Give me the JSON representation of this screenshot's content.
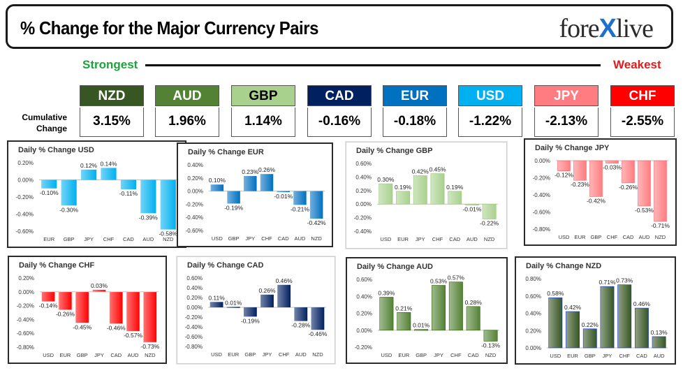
{
  "header": {
    "title": "% Change for the Major Currency Pairs",
    "logo_left": "fore",
    "logo_x": "X",
    "logo_right": "live"
  },
  "ranking": {
    "strongest_label": "Strongest",
    "weakest_label": "Weakest",
    "cumulative_label_line1": "Cumulative",
    "cumulative_label_line2": "Change",
    "tiles": [
      {
        "currency": "NZD",
        "value": "3.15%",
        "bg": "#375623",
        "fg": "#ffffff"
      },
      {
        "currency": "AUD",
        "value": "1.96%",
        "bg": "#548235",
        "fg": "#ffffff"
      },
      {
        "currency": "GBP",
        "value": "1.14%",
        "bg": "#a9d18e",
        "fg": "#000000"
      },
      {
        "currency": "CAD",
        "value": "-0.16%",
        "bg": "#002060",
        "fg": "#ffffff"
      },
      {
        "currency": "EUR",
        "value": "-0.18%",
        "bg": "#0070c0",
        "fg": "#ffffff"
      },
      {
        "currency": "USD",
        "value": "-1.22%",
        "bg": "#00b0f0",
        "fg": "#ffffff"
      },
      {
        "currency": "JPY",
        "value": "-2.13%",
        "bg": "#ff7c80",
        "fg": "#ffffff"
      },
      {
        "currency": "CHF",
        "value": "-2.55%",
        "bg": "#ff0000",
        "fg": "#ffffff"
      }
    ]
  },
  "chart_data": [
    {
      "type": "bar",
      "title": "Daily % Change USD",
      "categories": [
        "EUR",
        "GBP",
        "JPY",
        "CHF",
        "CAD",
        "AUD",
        "NZD"
      ],
      "values": [
        -0.1,
        -0.3,
        0.12,
        0.14,
        -0.11,
        -0.39,
        -0.58
      ],
      "labels": [
        "-0.10%",
        "-0.30%",
        "0.12%",
        "0.14%",
        "-0.11%",
        "-0.39%",
        "-0.58%"
      ],
      "ylim": [
        -0.6,
        0.2
      ],
      "ticks": [
        "0.20%",
        "0.00%",
        "-0.20%",
        "-0.40%",
        "-0.60%"
      ],
      "tick_values": [
        0.2,
        0,
        -0.2,
        -0.4,
        -0.6
      ],
      "color": "#00b0f0"
    },
    {
      "type": "bar",
      "title": "Daily % Change EUR",
      "categories": [
        "USD",
        "GBP",
        "JPY",
        "CHF",
        "CAD",
        "AUD",
        "NZD"
      ],
      "values": [
        0.1,
        -0.19,
        0.23,
        0.26,
        -0.01,
        -0.21,
        -0.42
      ],
      "labels": [
        "0.10%",
        "-0.19%",
        "0.23%",
        "0.26%",
        "-0.01%",
        "-0.21%",
        "-0.42%"
      ],
      "ylim": [
        -0.6,
        0.4
      ],
      "ticks": [
        "0.40%",
        "0.20%",
        "0.00%",
        "-0.20%",
        "-0.40%",
        "-0.60%"
      ],
      "tick_values": [
        0.4,
        0.2,
        0,
        -0.2,
        -0.4,
        -0.6
      ],
      "color": "#0070c0"
    },
    {
      "type": "bar",
      "title": "Daily % Change GBP",
      "categories": [
        "USD",
        "EUR",
        "JPY",
        "CHF",
        "CAD",
        "AUD",
        "NZD"
      ],
      "values": [
        0.3,
        0.19,
        0.42,
        0.45,
        0.19,
        -0.01,
        -0.22
      ],
      "labels": [
        "0.30%",
        "0.19%",
        "0.42%",
        "0.45%",
        "0.19%",
        "-0.01%",
        "-0.22%"
      ],
      "ylim": [
        -0.4,
        0.6
      ],
      "ticks": [
        "0.60%",
        "0.40%",
        "0.20%",
        "0.00%",
        "-0.20%",
        "-0.40%"
      ],
      "tick_values": [
        0.6,
        0.4,
        0.2,
        0,
        -0.2,
        -0.4
      ],
      "color": "#a9d18e"
    },
    {
      "type": "bar",
      "title": "Daily % Change JPY",
      "categories": [
        "USD",
        "EUR",
        "GBP",
        "CHF",
        "CAD",
        "AUD",
        "NZD"
      ],
      "values": [
        -0.12,
        -0.23,
        -0.42,
        -0.03,
        -0.26,
        -0.53,
        -0.71
      ],
      "labels": [
        "-0.12%",
        "-0.23%",
        "-0.42%",
        "-0.03%",
        "-0.26%",
        "-0.53%",
        "-0.71%"
      ],
      "ylim": [
        -0.8,
        0.0
      ],
      "ticks": [
        "0.00%",
        "-0.20%",
        "-0.40%",
        "-0.60%",
        "-0.80%"
      ],
      "tick_values": [
        0,
        -0.2,
        -0.4,
        -0.6,
        -0.8
      ],
      "color": "#ff7c80"
    },
    {
      "type": "bar",
      "title": "Daily % Change CHF",
      "categories": [
        "USD",
        "EUR",
        "GBP",
        "JPY",
        "CAD",
        "AUD",
        "NZD"
      ],
      "values": [
        -0.14,
        -0.26,
        -0.45,
        0.03,
        -0.46,
        -0.57,
        -0.73
      ],
      "labels": [
        "-0.14%",
        "-0.26%",
        "-0.45%",
        "0.03%",
        "-0.46%",
        "-0.57%",
        "-0.73%"
      ],
      "ylim": [
        -0.8,
        0.2
      ],
      "ticks": [
        "0.20%",
        "0.00%",
        "-0.20%",
        "-0.40%",
        "-0.60%",
        "-0.80%"
      ],
      "tick_values": [
        0.2,
        0,
        -0.2,
        -0.4,
        -0.6,
        -0.8
      ],
      "color": "#ff0000"
    },
    {
      "type": "bar",
      "title": "Daily % Change CAD",
      "categories": [
        "USD",
        "EUR",
        "GBP",
        "JPY",
        "CHF",
        "AUD",
        "NZD"
      ],
      "values": [
        0.11,
        0.01,
        -0.19,
        0.26,
        0.46,
        -0.28,
        -0.46
      ],
      "labels": [
        "0.11%",
        "0.01%",
        "-0.19%",
        "0.26%",
        "0.46%",
        "-0.28%",
        "-0.46%"
      ],
      "ylim": [
        -0.8,
        0.6
      ],
      "ticks": [
        "0.60%",
        "0.40%",
        "0.20%",
        "0.00%",
        "-0.20%",
        "-0.40%",
        "-0.60%",
        "-0.80%"
      ],
      "tick_values": [
        0.6,
        0.4,
        0.2,
        0,
        -0.2,
        -0.4,
        -0.6,
        -0.8
      ],
      "color": "#002060"
    },
    {
      "type": "bar",
      "title": "Daily % Change AUD",
      "categories": [
        "USD",
        "EUR",
        "GBP",
        "JPY",
        "CHF",
        "CAD",
        "NZD"
      ],
      "values": [
        0.39,
        0.21,
        0.01,
        0.53,
        0.57,
        0.28,
        -0.13
      ],
      "labels": [
        "0.39%",
        "0.21%",
        "0.01%",
        "0.53%",
        "0.57%",
        "0.28%",
        "-0.13%"
      ],
      "ylim": [
        -0.2,
        0.6
      ],
      "ticks": [
        "0.60%",
        "0.40%",
        "0.20%",
        "0.00%",
        "-0.20%"
      ],
      "tick_values": [
        0.6,
        0.4,
        0.2,
        0,
        -0.2
      ],
      "color": "#548235"
    },
    {
      "type": "bar",
      "title": "Daily % Change NZD",
      "categories": [
        "USD",
        "EUR",
        "GBP",
        "JPY",
        "CHF",
        "CAD",
        "AUD"
      ],
      "values": [
        0.58,
        0.42,
        0.22,
        0.71,
        0.73,
        0.46,
        0.13
      ],
      "labels": [
        "0.58%",
        "0.42%",
        "0.22%",
        "0.71%",
        "0.73%",
        "0.46%",
        "0.13%"
      ],
      "ylim": [
        0.0,
        0.8
      ],
      "ticks": [
        "0.80%",
        "0.60%",
        "0.40%",
        "0.20%",
        "0.00%"
      ],
      "tick_values": [
        0.8,
        0.6,
        0.4,
        0.2,
        0
      ],
      "color": "#375623"
    }
  ]
}
